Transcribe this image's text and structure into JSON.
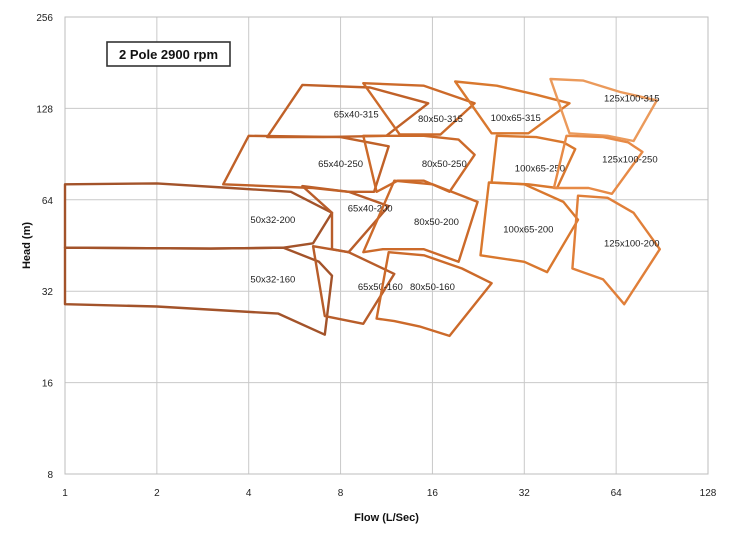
{
  "chart_data": {
    "type": "pump-curve-map",
    "title": "2 Pole 2900 rpm",
    "xlabel": "Flow (L/Sec)",
    "ylabel": "Head (m)",
    "xscale": "log2",
    "yscale": "log2",
    "xlim": [
      1,
      128
    ],
    "ylim": [
      8,
      256
    ],
    "xticks": [
      "1",
      "2",
      "4",
      "8",
      "16",
      "32",
      "64",
      "128"
    ],
    "yticks": [
      "8",
      "16",
      "32",
      "64",
      "128",
      "256"
    ],
    "grid": true,
    "pumps": [
      {
        "name": "50x32-200",
        "label_at": [
          4.8,
          55
        ],
        "color": "#a3532a",
        "outline": [
          [
            1,
            72
          ],
          [
            2,
            72.5
          ],
          [
            3.5,
            70
          ],
          [
            5.5,
            68
          ],
          [
            7.5,
            58
          ],
          [
            6.5,
            46
          ],
          [
            5.2,
            44.5
          ],
          [
            3,
            44.2
          ],
          [
            1,
            44.5
          ]
        ]
      },
      {
        "name": "50x32-160",
        "label_at": [
          4.8,
          35
        ],
        "color": "#a3532a",
        "outline": [
          [
            1,
            44.5
          ],
          [
            3,
            44.2
          ],
          [
            5.2,
            44.5
          ],
          [
            6.8,
            40
          ],
          [
            7.5,
            36
          ],
          [
            7.1,
            23
          ],
          [
            5,
            27
          ],
          [
            2,
            28.5
          ],
          [
            1,
            29
          ]
        ]
      },
      {
        "name": "65x40-200",
        "label_at": [
          10,
          60
        ],
        "color": "#b85d2a",
        "outline": [
          [
            6,
            71
          ],
          [
            8.5,
            68
          ],
          [
            11.5,
            61
          ],
          [
            8.5,
            43
          ],
          [
            7.5,
            44
          ],
          [
            7.5,
            58
          ]
        ]
      },
      {
        "name": "65x50-160",
        "label_at": [
          10.8,
          33
        ],
        "color": "#b85d2a",
        "outline": [
          [
            6.5,
            45
          ],
          [
            8.5,
            43
          ],
          [
            12,
            36.5
          ],
          [
            9.5,
            25
          ],
          [
            7.1,
            26.5
          ]
        ]
      },
      {
        "name": "65x40-250",
        "label_at": [
          8,
          84
        ],
        "color": "#c06128",
        "outline": [
          [
            4,
            104
          ],
          [
            8,
            103
          ],
          [
            11.5,
            96
          ],
          [
            10.3,
            68
          ],
          [
            8.5,
            68
          ],
          [
            6.5,
            70
          ],
          [
            3.3,
            72
          ]
        ]
      },
      {
        "name": "65x40-315",
        "label_at": [
          9,
          122
        ],
        "color": "#c06128",
        "outline": [
          [
            6,
            153
          ],
          [
            10,
            150
          ],
          [
            15.5,
            133
          ],
          [
            11.3,
            104
          ],
          [
            7,
            103
          ],
          [
            4.6,
            103
          ]
        ]
      },
      {
        "name": "80x50-315",
        "label_at": [
          17,
          118
        ],
        "color": "#cc6a2a",
        "outline": [
          [
            9.5,
            155
          ],
          [
            15,
            152
          ],
          [
            22,
            133
          ],
          [
            17,
            105
          ],
          [
            12.5,
            105
          ]
        ]
      },
      {
        "name": "80x50-250",
        "label_at": [
          17.5,
          84
        ],
        "color": "#cc6a2a",
        "outline": [
          [
            9.5,
            104
          ],
          [
            15,
            104
          ],
          [
            19.5,
            101
          ],
          [
            22,
            90
          ],
          [
            18.2,
            68
          ],
          [
            15,
            74
          ],
          [
            12.3,
            74
          ],
          [
            10.5,
            68
          ]
        ]
      },
      {
        "name": "80x50-200",
        "label_at": [
          16.5,
          54
        ],
        "color": "#cc6a2a",
        "outline": [
          [
            12,
            74
          ],
          [
            16,
            72
          ],
          [
            20,
            66
          ],
          [
            22.5,
            63
          ],
          [
            19.5,
            40
          ],
          [
            15,
            44
          ],
          [
            11,
            44
          ],
          [
            9.5,
            43
          ]
        ]
      },
      {
        "name": "80x50-160",
        "label_at": [
          16,
          33
        ],
        "color": "#cc6a2a",
        "outline": [
          [
            11.5,
            43
          ],
          [
            15,
            42
          ],
          [
            20,
            38
          ],
          [
            25,
            34
          ],
          [
            18.2,
            22.8
          ],
          [
            14.5,
            24.5
          ],
          [
            12,
            25.5
          ],
          [
            10.5,
            26
          ]
        ]
      },
      {
        "name": "100x65-315",
        "label_at": [
          30,
          119
        ],
        "color": "#d9782e",
        "outline": [
          [
            19,
            157
          ],
          [
            26,
            152
          ],
          [
            35,
            142
          ],
          [
            45,
            133
          ],
          [
            33,
            106
          ],
          [
            25,
            106
          ]
        ]
      },
      {
        "name": "100x65-250",
        "label_at": [
          36,
          81
        ],
        "color": "#d9782e",
        "outline": [
          [
            26,
            104
          ],
          [
            35,
            103
          ],
          [
            43,
            99
          ],
          [
            47,
            94
          ],
          [
            41,
            70
          ],
          [
            33,
            72
          ],
          [
            25,
            73
          ]
        ]
      },
      {
        "name": "100x65-200",
        "label_at": [
          33,
          51
        ],
        "color": "#d9782e",
        "outline": [
          [
            24.5,
            73
          ],
          [
            32,
            72
          ],
          [
            43,
            63
          ],
          [
            48,
            55
          ],
          [
            38,
            37
          ],
          [
            32,
            40
          ],
          [
            23,
            42
          ]
        ]
      },
      {
        "name": "125x100-315",
        "label_at": [
          72,
          138
        ],
        "color": "#eb9a5b",
        "outline": [
          [
            39,
            160
          ],
          [
            50,
            158
          ],
          [
            66,
            145
          ],
          [
            87,
            136
          ],
          [
            73,
            100
          ],
          [
            60,
            104
          ],
          [
            45,
            106
          ]
        ]
      },
      {
        "name": "125x100-250",
        "label_at": [
          71,
          87
        ],
        "color": "#e78a46",
        "outline": [
          [
            44,
            104
          ],
          [
            58,
            103
          ],
          [
            70,
            99
          ],
          [
            78,
            92
          ],
          [
            62,
            67
          ],
          [
            52,
            70
          ],
          [
            40,
            70
          ]
        ]
      },
      {
        "name": "125x100-200",
        "label_at": [
          72,
          46
        ],
        "color": "#e07f39",
        "outline": [
          [
            48,
            66
          ],
          [
            60,
            65
          ],
          [
            73,
            58
          ],
          [
            89,
            44
          ],
          [
            68,
            29
          ],
          [
            58,
            35
          ],
          [
            46,
            38
          ]
        ]
      }
    ]
  }
}
